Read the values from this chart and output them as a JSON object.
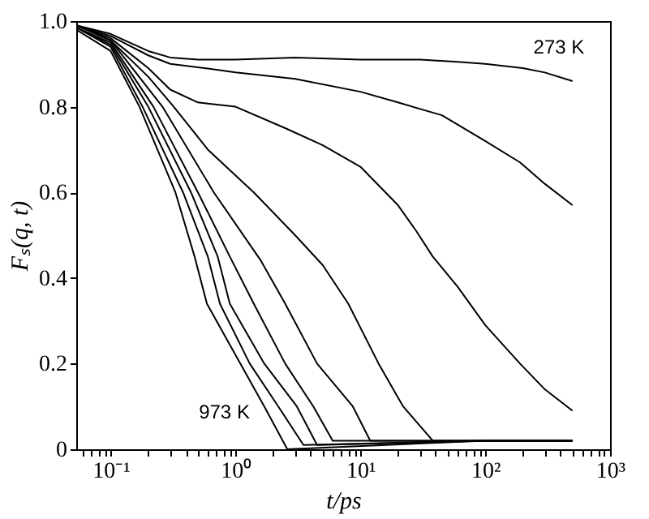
{
  "chart_data": {
    "type": "line",
    "xlabel": "t/ps",
    "ylabel": "Fₛ(q, t)",
    "log": "x",
    "grid": false,
    "legend": false,
    "xlim": [
      0.053,
      1000
    ],
    "ylim": [
      0,
      1.0
    ],
    "xticks": [
      {
        "value": 0.06,
        "label": null
      },
      {
        "value": 0.07,
        "label": null
      },
      {
        "value": 0.08,
        "label": null
      },
      {
        "value": 0.09,
        "label": null
      },
      {
        "value": 0.1,
        "label": "10⁻¹"
      },
      {
        "value": 0.2,
        "label": null
      },
      {
        "value": 0.3,
        "label": null
      },
      {
        "value": 0.4,
        "label": null
      },
      {
        "value": 0.5,
        "label": null
      },
      {
        "value": 0.6,
        "label": null
      },
      {
        "value": 0.7,
        "label": null
      },
      {
        "value": 0.8,
        "label": null
      },
      {
        "value": 0.9,
        "label": null
      },
      {
        "value": 1,
        "label": "10⁰"
      },
      {
        "value": 2,
        "label": null
      },
      {
        "value": 3,
        "label": null
      },
      {
        "value": 4,
        "label": null
      },
      {
        "value": 5,
        "label": null
      },
      {
        "value": 6,
        "label": null
      },
      {
        "value": 7,
        "label": null
      },
      {
        "value": 8,
        "label": null
      },
      {
        "value": 9,
        "label": null
      },
      {
        "value": 10,
        "label": "10¹"
      },
      {
        "value": 20,
        "label": null
      },
      {
        "value": 30,
        "label": null
      },
      {
        "value": 40,
        "label": null
      },
      {
        "value": 50,
        "label": null
      },
      {
        "value": 60,
        "label": null
      },
      {
        "value": 70,
        "label": null
      },
      {
        "value": 80,
        "label": null
      },
      {
        "value": 90,
        "label": null
      },
      {
        "value": 100,
        "label": "10²"
      },
      {
        "value": 200,
        "label": null
      },
      {
        "value": 300,
        "label": null
      },
      {
        "value": 400,
        "label": null
      },
      {
        "value": 500,
        "label": null
      },
      {
        "value": 600,
        "label": null
      },
      {
        "value": 700,
        "label": null
      },
      {
        "value": 800,
        "label": null
      },
      {
        "value": 900,
        "label": null
      },
      {
        "value": 1000,
        "label": "10³"
      }
    ],
    "yticks": [
      0,
      0.2,
      0.4,
      0.6,
      0.8,
      {
        "value": 1.0,
        "label": "1.0"
      }
    ],
    "annotations": [
      "273 K",
      "973 K"
    ],
    "series": [
      {
        "color": "#000000",
        "x": [
          0.053,
          0.1,
          0.2,
          0.3,
          0.5,
          1,
          3,
          10,
          30,
          60,
          100,
          200,
          300,
          500
        ],
        "values": [
          0.99,
          0.97,
          0.93,
          0.915,
          0.91,
          0.91,
          0.915,
          0.91,
          0.91,
          0.905,
          0.9,
          0.89,
          0.88,
          0.86
        ]
      },
      {
        "color": "#000000",
        "x": [
          0.053,
          0.1,
          0.2,
          0.3,
          0.6,
          1,
          3,
          10,
          20,
          45,
          100,
          190,
          300,
          500
        ],
        "values": [
          0.99,
          0.965,
          0.92,
          0.9,
          0.889,
          0.88,
          0.865,
          0.835,
          0.81,
          0.78,
          0.72,
          0.67,
          0.62,
          0.57
        ]
      },
      {
        "color": "#000000",
        "x": [
          0.053,
          0.1,
          0.2,
          0.3,
          0.5,
          1,
          2.5,
          5,
          10,
          20,
          28,
          38,
          60,
          100,
          190,
          300,
          500
        ],
        "values": [
          0.99,
          0.96,
          0.89,
          0.84,
          0.81,
          0.8,
          0.75,
          0.71,
          0.66,
          0.57,
          0.51,
          0.45,
          0.38,
          0.29,
          0.2,
          0.14,
          0.09
        ]
      },
      {
        "color": "#000000",
        "x": [
          0.053,
          0.1,
          0.2,
          0.32,
          0.6,
          1.4,
          3,
          5,
          8,
          14,
          22,
          38,
          100,
          500
        ],
        "values": [
          0.99,
          0.955,
          0.87,
          0.8,
          0.7,
          0.6,
          0.5,
          0.43,
          0.34,
          0.2,
          0.1,
          0.02,
          0.02,
          0.02
        ]
      },
      {
        "color": "#000000",
        "x": [
          0.053,
          0.1,
          0.26,
          0.67,
          1.6,
          2.5,
          4.5,
          8.7,
          12,
          100,
          500
        ],
        "values": [
          0.99,
          0.955,
          0.8,
          0.6,
          0.44,
          0.34,
          0.2,
          0.1,
          0.02,
          0.02,
          0.02
        ]
      },
      {
        "color": "#000000",
        "x": [
          0.053,
          0.1,
          0.22,
          0.5,
          0.9,
          1.4,
          2.5,
          4.2,
          6,
          100,
          500
        ],
        "values": [
          0.985,
          0.95,
          0.8,
          0.6,
          0.45,
          0.34,
          0.2,
          0.1,
          0.02,
          0.02,
          0.02
        ]
      },
      {
        "color": "#000000",
        "x": [
          0.053,
          0.1,
          0.2,
          0.44,
          0.72,
          0.9,
          1.7,
          3.1,
          4.5,
          100,
          500
        ],
        "values": [
          0.985,
          0.945,
          0.8,
          0.6,
          0.45,
          0.34,
          0.2,
          0.1,
          0.01,
          0.02,
          0.02
        ]
      },
      {
        "color": "#000000",
        "x": [
          0.053,
          0.1,
          0.18,
          0.38,
          0.6,
          0.75,
          1.3,
          2.2,
          3.5,
          100,
          500
        ],
        "values": [
          0.985,
          0.94,
          0.8,
          0.6,
          0.45,
          0.34,
          0.2,
          0.1,
          0.01,
          0.02,
          0.02
        ]
      },
      {
        "color": "#000000",
        "x": [
          0.053,
          0.1,
          0.17,
          0.33,
          0.47,
          0.59,
          1,
          1.7,
          2.6,
          100,
          500
        ],
        "values": [
          0.98,
          0.93,
          0.8,
          0.6,
          0.45,
          0.34,
          0.22,
          0.1,
          0.0,
          0.02,
          0.02
        ]
      }
    ]
  }
}
